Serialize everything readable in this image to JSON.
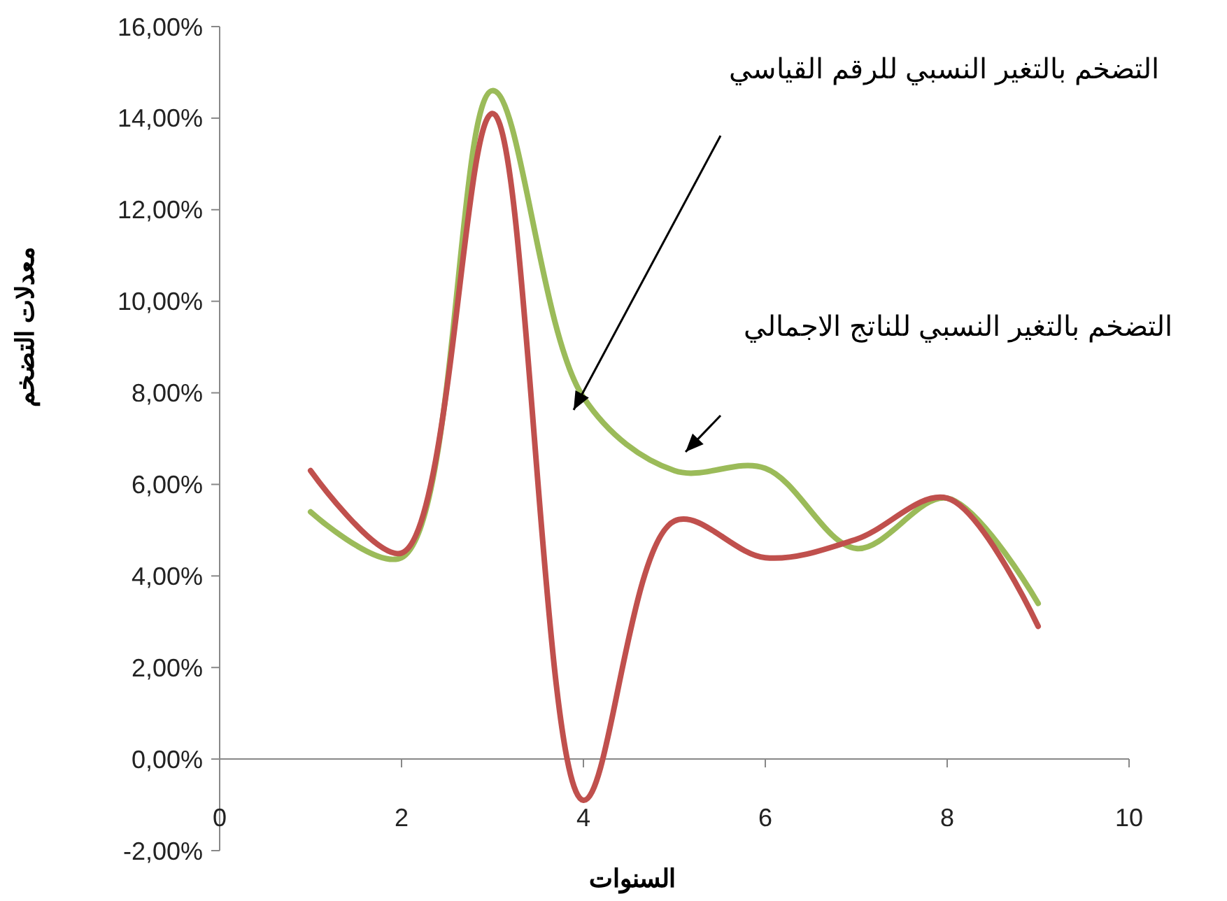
{
  "chart_data": {
    "type": "line",
    "xlabel": "السنوات",
    "ylabel": "معدلات التضخم",
    "x": [
      1,
      2,
      3,
      4,
      5,
      6,
      7,
      8,
      9
    ],
    "series": [
      {
        "color": "#9bbb59",
        "values": [
          5.4,
          4.4,
          14.6,
          7.9,
          6.3,
          6.35,
          4.6,
          5.7,
          3.4
        ]
      },
      {
        "color": "#c0504d",
        "values": [
          6.3,
          4.5,
          14.1,
          -0.9,
          5.2,
          4.4,
          4.8,
          5.7,
          2.9
        ]
      }
    ],
    "xlim": [
      0,
      10
    ],
    "xticks": [
      0,
      2,
      4,
      6,
      8,
      10
    ],
    "ylim": [
      -2,
      16
    ],
    "yticks": [
      {
        "value": -2,
        "label": "-2,00%"
      },
      {
        "value": 0,
        "label": "0,00%"
      },
      {
        "value": 2,
        "label": "2,00%"
      },
      {
        "value": 4,
        "label": "4,00%"
      },
      {
        "value": 6,
        "label": "6,00%"
      },
      {
        "value": 8,
        "label": "8,00%"
      },
      {
        "value": 10,
        "label": "10,00%"
      },
      {
        "value": 12,
        "label": "12,00%"
      },
      {
        "value": 14,
        "label": "14,00%"
      },
      {
        "value": 16,
        "label": "16,00%"
      }
    ],
    "grid": false,
    "marker": "none",
    "line_style": "solid",
    "annotations": [
      "التضخم  بالتغير النسبي للرقم القياسي",
      "التضخم بالتغير النسبي للناتج الاجمالي"
    ]
  }
}
